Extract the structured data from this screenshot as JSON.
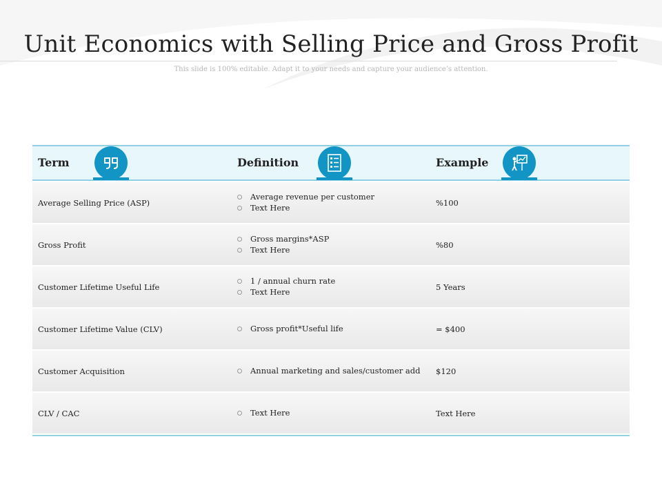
{
  "header": {
    "title": "Unit Economics with Selling Price and Gross Profit",
    "subtitle": "This slide is 100% editable. Adapt it to your needs and capture your audience’s attention."
  },
  "table": {
    "columns": [
      {
        "label": "Term",
        "icon": "quote-icon"
      },
      {
        "label": "Definition",
        "icon": "list-icon"
      },
      {
        "label": "Example",
        "icon": "presenter-icon"
      }
    ],
    "rows": [
      {
        "term": "Average Selling Price (ASP)",
        "defs": [
          "Average revenue per customer",
          "Text Here"
        ],
        "example": "%100"
      },
      {
        "term": "Gross Profit",
        "defs": [
          "Gross margins*ASP",
          "Text Here"
        ],
        "example": "%80"
      },
      {
        "term": "Customer Lifetime Useful Life",
        "defs": [
          "1 / annual churn rate",
          "Text Here"
        ],
        "example": "5 Years"
      },
      {
        "term": "Customer Lifetime Value (CLV)",
        "defs": [
          "Gross profit*Useful life"
        ],
        "example": "= $400"
      },
      {
        "term": "Customer Acquisition",
        "defs": [
          "Annual marketing and sales/customer add"
        ],
        "example": "$120"
      },
      {
        "term": "CLV / CAC",
        "defs": [
          "Text Here"
        ],
        "example": "Text Here"
      }
    ]
  },
  "colors": {
    "accent": "#1295c4",
    "header_bg": "#e8f7fb",
    "rule": "#8fd0e2"
  }
}
